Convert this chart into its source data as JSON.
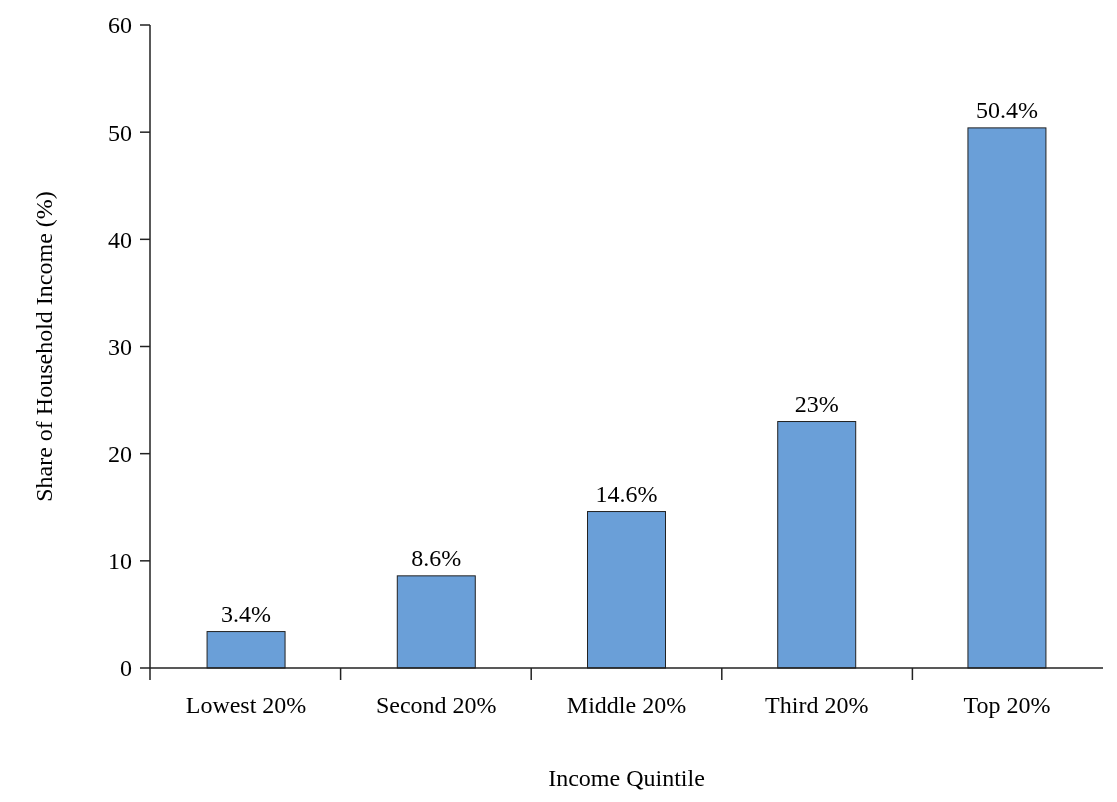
{
  "chart_data": {
    "type": "bar",
    "xlabel": "Income Quintile",
    "ylabel": "Share of Household Income (%)",
    "categories": [
      "Lowest 20%",
      "Second 20%",
      "Middle 20%",
      "Third 20%",
      "Top 20%"
    ],
    "values": [
      3.4,
      8.6,
      14.6,
      23,
      50.4
    ],
    "value_labels": [
      "3.4%",
      "8.6%",
      "14.6%",
      "23%",
      "50.4%"
    ],
    "color": "#6a9fd8",
    "ylim": [
      0,
      60
    ],
    "yticks": [
      0,
      10,
      20,
      30,
      40,
      50,
      60
    ],
    "grid": false
  }
}
